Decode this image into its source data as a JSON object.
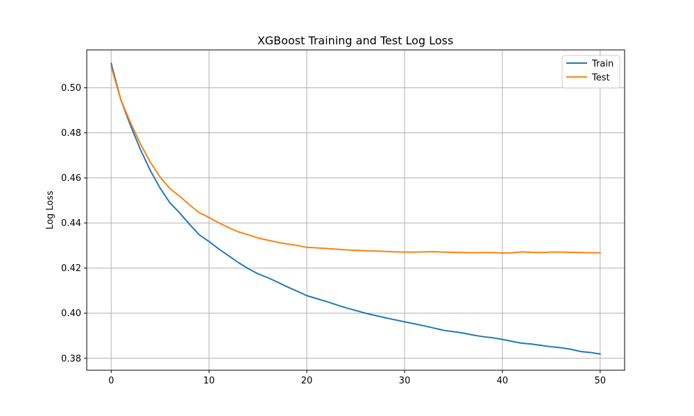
{
  "chart_data": {
    "type": "line",
    "title": "XGBoost Training and Test Log Loss",
    "xlabel": "",
    "ylabel": "Log Loss",
    "xlim": [
      -2.5,
      52.5
    ],
    "ylim": [
      0.3747,
      0.5168
    ],
    "x_ticks": [
      0,
      10,
      20,
      30,
      40,
      50
    ],
    "y_ticks": [
      0.38,
      0.4,
      0.42,
      0.44,
      0.46,
      0.48,
      0.5
    ],
    "y_tick_labels": [
      "0.38",
      "0.40",
      "0.42",
      "0.44",
      "0.46",
      "0.48",
      "0.50"
    ],
    "x_tick_labels": [
      "0",
      "10",
      "20",
      "30",
      "40",
      "50"
    ],
    "grid": true,
    "legend_position": "top-right",
    "x": [
      0,
      1,
      2,
      3,
      4,
      5,
      6,
      7,
      8,
      9,
      10,
      11,
      12,
      13,
      14,
      15,
      16,
      17,
      18,
      19,
      20,
      21,
      22,
      23,
      24,
      25,
      26,
      27,
      28,
      29,
      30,
      31,
      32,
      33,
      34,
      35,
      36,
      37,
      38,
      39,
      40,
      41,
      42,
      43,
      44,
      45,
      46,
      47,
      48,
      49,
      50
    ],
    "series": [
      {
        "name": "Train",
        "color": "#1f77b4",
        "values": [
          0.5108,
          0.4945,
          0.483,
          0.4725,
          0.4633,
          0.4555,
          0.449,
          0.4445,
          0.4395,
          0.4348,
          0.4318,
          0.4285,
          0.4255,
          0.4225,
          0.4198,
          0.4175,
          0.4158,
          0.4138,
          0.4117,
          0.4098,
          0.4078,
          0.4065,
          0.4052,
          0.4038,
          0.4024,
          0.4012,
          0.4,
          0.399,
          0.398,
          0.3971,
          0.3962,
          0.3953,
          0.3944,
          0.3934,
          0.3924,
          0.3918,
          0.3912,
          0.3903,
          0.3896,
          0.3891,
          0.3884,
          0.3875,
          0.3867,
          0.3863,
          0.3857,
          0.3851,
          0.3847,
          0.384,
          0.383,
          0.3826,
          0.3819
        ]
      },
      {
        "name": "Test",
        "color": "#ff7f0e",
        "values": [
          0.5092,
          0.4945,
          0.4843,
          0.475,
          0.467,
          0.4604,
          0.4553,
          0.4519,
          0.4481,
          0.4446,
          0.4425,
          0.4401,
          0.438,
          0.4361,
          0.4348,
          0.4334,
          0.4324,
          0.4315,
          0.4307,
          0.4301,
          0.4292,
          0.429,
          0.4287,
          0.4284,
          0.4281,
          0.4279,
          0.4277,
          0.4276,
          0.4274,
          0.4272,
          0.4271,
          0.4271,
          0.4272,
          0.4273,
          0.4271,
          0.427,
          0.4269,
          0.4268,
          0.4269,
          0.4269,
          0.4267,
          0.4268,
          0.4272,
          0.427,
          0.4269,
          0.4271,
          0.4271,
          0.427,
          0.4269,
          0.4268,
          0.4268
        ]
      }
    ]
  }
}
